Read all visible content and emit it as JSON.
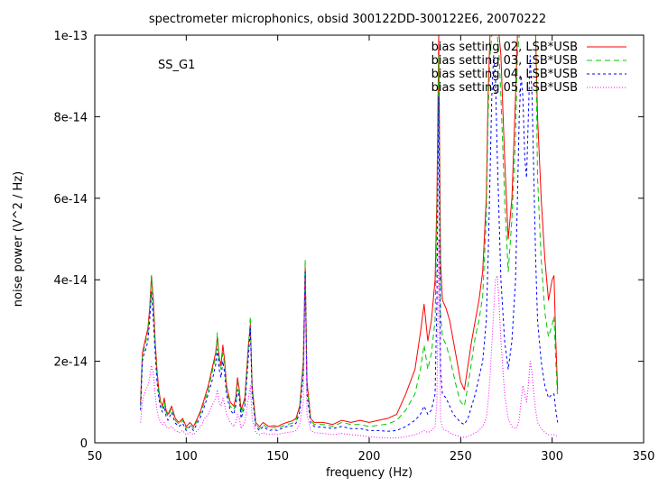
{
  "chart_data": {
    "type": "line",
    "title": "spectrometer microphonics, obsid 300122DD-300122E6, 20070222",
    "annotation": "SS_G1",
    "xlabel": "frequency (Hz)",
    "ylabel": "noise power (V^2 / Hz)",
    "xlim": [
      50,
      350
    ],
    "ylim": [
      0,
      1e-13
    ],
    "x_ticks": [
      {
        "value": 50,
        "label": "50"
      },
      {
        "value": 100,
        "label": "100"
      },
      {
        "value": 150,
        "label": "150"
      },
      {
        "value": 200,
        "label": "200"
      },
      {
        "value": 250,
        "label": "250"
      },
      {
        "value": 300,
        "label": "300"
      },
      {
        "value": 350,
        "label": "350"
      }
    ],
    "y_ticks": [
      {
        "value": 0,
        "label": "0"
      },
      {
        "value": 2e-14,
        "label": "2e-14"
      },
      {
        "value": 4e-14,
        "label": "4e-14"
      },
      {
        "value": 6e-14,
        "label": "6e-14"
      },
      {
        "value": 8e-14,
        "label": "8e-14"
      },
      {
        "value": 1e-13,
        "label": "1e-13"
      }
    ],
    "grid": false,
    "legend_position": "top-right",
    "x": [
      75,
      76,
      77,
      78,
      79,
      80,
      81,
      82,
      83,
      84,
      85,
      86,
      87,
      88,
      89,
      90,
      92,
      94,
      96,
      98,
      100,
      102,
      104,
      106,
      108,
      110,
      112,
      114,
      116,
      117,
      118,
      119,
      120,
      121,
      122,
      124,
      126,
      127,
      128,
      129,
      130,
      132,
      134,
      135,
      136,
      138,
      140,
      142,
      145,
      148,
      150,
      152,
      155,
      158,
      160,
      162,
      164,
      165,
      166,
      168,
      170,
      175,
      180,
      185,
      190,
      195,
      200,
      205,
      210,
      215,
      220,
      225,
      228,
      230,
      232,
      234,
      236,
      237,
      238,
      239,
      240,
      242,
      244,
      246,
      248,
      250,
      252,
      254,
      256,
      258,
      260,
      262,
      264,
      265,
      266,
      267,
      268,
      269,
      270,
      271,
      272,
      274,
      276,
      278,
      280,
      281,
      282,
      283,
      284,
      285,
      286,
      287,
      288,
      289,
      290,
      291,
      292,
      294,
      296,
      298,
      300,
      301,
      302,
      303
    ],
    "series": [
      {
        "name": "bias setting 02, LSB*USB",
        "color": "#ff0000",
        "dash": "",
        "values": [
          1e-14,
          2.2e-14,
          2.4e-14,
          2.6e-14,
          2.8e-14,
          3.3e-14,
          4.1e-14,
          3.5e-14,
          2.5e-14,
          1.8e-14,
          1.3e-14,
          1e-14,
          9e-15,
          1.1e-14,
          8e-15,
          7e-15,
          9e-15,
          6e-15,
          5e-15,
          6e-15,
          4e-15,
          5e-15,
          4e-15,
          6e-15,
          8e-15,
          1.1e-14,
          1.4e-14,
          1.8e-14,
          2.2e-14,
          2.6e-14,
          2.1e-14,
          1.9e-14,
          2.4e-14,
          2e-14,
          1.4e-14,
          1e-14,
          9e-15,
          1.1e-14,
          1.6e-14,
          1.3e-14,
          8e-15,
          1.1e-14,
          2.4e-14,
          2.9e-14,
          1.4e-14,
          5e-15,
          4e-15,
          5e-15,
          4e-15,
          4.2e-15,
          4e-15,
          4.5e-15,
          5e-15,
          5.4e-15,
          6e-15,
          9e-15,
          2e-14,
          4.3e-14,
          1.5e-14,
          6e-15,
          5e-15,
          5e-15,
          4.5e-15,
          5.5e-15,
          5e-15,
          5.5e-15,
          5e-15,
          5.5e-15,
          6e-15,
          7e-15,
          1.2e-14,
          1.8e-14,
          2.7e-14,
          3.4e-14,
          2.5e-14,
          3e-14,
          4e-14,
          6e-14,
          1e-13,
          4.5e-14,
          3.5e-14,
          3.3e-14,
          3e-14,
          2.5e-14,
          2e-14,
          1.5e-14,
          1.3e-14,
          1.9e-14,
          2.5e-14,
          3e-14,
          3.5e-14,
          4.2e-14,
          6e-14,
          8.5e-14,
          1e-13,
          1e-13,
          1e-13,
          1e-13,
          1e-13,
          1e-13,
          9.5e-14,
          7e-14,
          5e-14,
          6e-14,
          8.5e-14,
          1e-13,
          1e-13,
          1e-13,
          1e-13,
          1e-13,
          1e-13,
          1e-13,
          1e-13,
          1e-13,
          1e-13,
          1e-13,
          8e-14,
          6e-14,
          4.5e-14,
          3.5e-14,
          4e-14,
          4.1e-14,
          2.5e-14,
          1.3e-14
        ]
      },
      {
        "name": "bias setting 03, LSB*USB",
        "color": "#00c800",
        "dash": "6,4",
        "values": [
          9e-15,
          2.1e-14,
          2.3e-14,
          2.5e-14,
          2.7e-14,
          3.2e-14,
          4.1e-14,
          3.3e-14,
          2.4e-14,
          1.7e-14,
          1.2e-14,
          9.5e-15,
          8.5e-15,
          1e-14,
          7.5e-15,
          6.5e-15,
          8.5e-15,
          5.5e-15,
          4.5e-15,
          5.5e-15,
          3.5e-15,
          4.5e-15,
          3.5e-15,
          5.5e-15,
          7.5e-15,
          1e-14,
          1.3e-14,
          1.7e-14,
          2.1e-14,
          2.7e-14,
          2e-14,
          1.8e-14,
          2.2e-14,
          1.9e-14,
          1.3e-14,
          9e-15,
          8e-15,
          1e-14,
          1.5e-14,
          1.2e-14,
          7e-15,
          1e-14,
          2.3e-14,
          3.1e-14,
          1.3e-14,
          4.5e-15,
          3.5e-15,
          4.5e-15,
          3.5e-15,
          3.8e-15,
          3.5e-15,
          4e-15,
          4.5e-15,
          4.8e-15,
          5.5e-15,
          8.5e-15,
          1.9e-14,
          4.5e-14,
          1.4e-14,
          5.5e-15,
          4.5e-15,
          4.5e-15,
          4e-15,
          5e-15,
          4.5e-15,
          4.5e-15,
          4e-15,
          4.3e-15,
          4.6e-15,
          5.5e-15,
          8e-15,
          1.2e-14,
          1.8e-14,
          2.4e-14,
          1.8e-14,
          2.2e-14,
          3e-14,
          5.5e-14,
          9.5e-14,
          3.2e-14,
          2.6e-14,
          2.4e-14,
          2.1e-14,
          1.7e-14,
          1.3e-14,
          1e-14,
          9e-15,
          1.4e-14,
          2e-14,
          2.6e-14,
          3e-14,
          3.6e-14,
          5.5e-14,
          8e-14,
          9.5e-14,
          1e-13,
          1e-13,
          1e-13,
          1e-13,
          9.5e-14,
          8.5e-14,
          6e-14,
          4.2e-14,
          5.5e-14,
          7.5e-14,
          9.5e-14,
          1e-13,
          1e-13,
          1e-13,
          1e-13,
          1e-13,
          1e-13,
          1e-13,
          1e-13,
          1e-13,
          1e-13,
          6.5e-14,
          4.5e-14,
          3.2e-14,
          2.6e-14,
          2.9e-14,
          3.1e-14,
          2e-14,
          1.1e-14
        ]
      },
      {
        "name": "bias setting 04, LSB*USB",
        "color": "#0000ff",
        "dash": "3,3",
        "values": [
          8e-15,
          2e-14,
          2.2e-14,
          2.3e-14,
          2.5e-14,
          3e-14,
          3.7e-14,
          3e-14,
          2.2e-14,
          1.5e-14,
          1.1e-14,
          8.5e-15,
          7.5e-15,
          9e-15,
          6.5e-15,
          5.5e-15,
          7.5e-15,
          4.8e-15,
          4e-15,
          4.8e-15,
          3e-15,
          4e-15,
          3e-15,
          4.8e-15,
          6.5e-15,
          9e-15,
          1.2e-14,
          1.5e-14,
          1.9e-14,
          2.3e-14,
          1.8e-14,
          1.6e-14,
          2e-14,
          1.7e-14,
          1.2e-14,
          8e-15,
          7e-15,
          9e-15,
          1.3e-14,
          1.1e-14,
          6e-15,
          9e-15,
          2.1e-14,
          2.8e-14,
          1.2e-14,
          4e-15,
          3e-15,
          4e-15,
          3e-15,
          3.2e-15,
          3e-15,
          3.5e-15,
          4e-15,
          4.2e-15,
          4.8e-15,
          7.5e-15,
          1.7e-14,
          4.2e-14,
          1.2e-14,
          4.8e-15,
          4e-15,
          3.8e-15,
          3.5e-15,
          4e-15,
          3.5e-15,
          3.5e-15,
          3e-15,
          3e-15,
          2.8e-15,
          3e-15,
          4e-15,
          5.5e-15,
          7e-15,
          9e-15,
          7e-15,
          8e-15,
          1.2e-14,
          3.5e-14,
          8.5e-14,
          1.8e-14,
          1.2e-14,
          1.1e-14,
          9e-15,
          7e-15,
          6e-15,
          5e-15,
          4.5e-15,
          6e-15,
          9e-15,
          1.2e-14,
          1.6e-14,
          2e-14,
          3e-14,
          4.5e-14,
          6.5e-14,
          8.5e-14,
          9.5e-14,
          9e-14,
          7e-14,
          5.5e-14,
          4e-14,
          2.5e-14,
          1.8e-14,
          2.5e-14,
          4e-14,
          6e-14,
          8e-14,
          9e-14,
          8.5e-14,
          7e-14,
          6.5e-14,
          8e-14,
          9.5e-14,
          8.5e-14,
          6.5e-14,
          4.5e-14,
          3e-14,
          2e-14,
          1.4e-14,
          1.1e-14,
          1.2e-14,
          1.2e-14,
          8e-15,
          5e-15
        ]
      },
      {
        "name": "bias setting 05, LSB*USB",
        "color": "#ff00ff",
        "dash": "1,2",
        "values": [
          5e-15,
          1e-14,
          1.2e-14,
          1.3e-14,
          1.4e-14,
          1.6e-14,
          1.9e-14,
          1.7e-14,
          1.2e-14,
          8e-15,
          6e-15,
          5e-15,
          4.5e-15,
          5e-15,
          4e-15,
          3.5e-15,
          4e-15,
          3e-15,
          2.5e-15,
          3e-15,
          2e-15,
          2.5e-15,
          2e-15,
          3e-15,
          4e-15,
          6e-15,
          7e-15,
          9e-15,
          1.1e-14,
          1.3e-14,
          1e-14,
          9e-15,
          1.1e-14,
          9.5e-15,
          7e-15,
          5e-15,
          4e-15,
          5e-15,
          7e-15,
          6e-15,
          3.5e-15,
          5e-15,
          1.1e-14,
          1.4e-14,
          6e-15,
          2.5e-15,
          2e-15,
          2.5e-15,
          2e-15,
          2.2e-15,
          2e-15,
          2.3e-15,
          2.5e-15,
          2.7e-15,
          3e-15,
          4.5e-15,
          1e-14,
          4e-14,
          7e-15,
          3e-15,
          2.5e-15,
          2.3e-15,
          2e-15,
          2.3e-15,
          2e-15,
          1.8e-15,
          1.5e-15,
          1.3e-15,
          1.2e-15,
          1.2e-15,
          1.5e-15,
          2e-15,
          2.5e-15,
          3e-15,
          2.5e-15,
          3e-15,
          4e-15,
          1e-14,
          5e-14,
          6e-15,
          3.5e-15,
          3e-15,
          2.5e-15,
          2e-15,
          1.8e-15,
          1.5e-15,
          1.3e-15,
          1.6e-15,
          2e-15,
          2.5e-15,
          3e-15,
          4e-15,
          6e-15,
          1e-14,
          1.6e-14,
          2.4e-14,
          3.2e-14,
          4e-14,
          4.1e-14,
          3.4e-14,
          2.5e-14,
          1.2e-14,
          6e-15,
          4e-15,
          3.5e-15,
          4e-15,
          6e-15,
          1e-14,
          1.4e-14,
          1.2e-14,
          1e-14,
          1.4e-14,
          2e-14,
          1.7e-14,
          1.2e-14,
          8e-15,
          5e-15,
          3.5e-15,
          2.5e-15,
          2e-15,
          2e-15,
          2e-15,
          1.8e-15,
          1.5e-15
        ]
      }
    ]
  }
}
